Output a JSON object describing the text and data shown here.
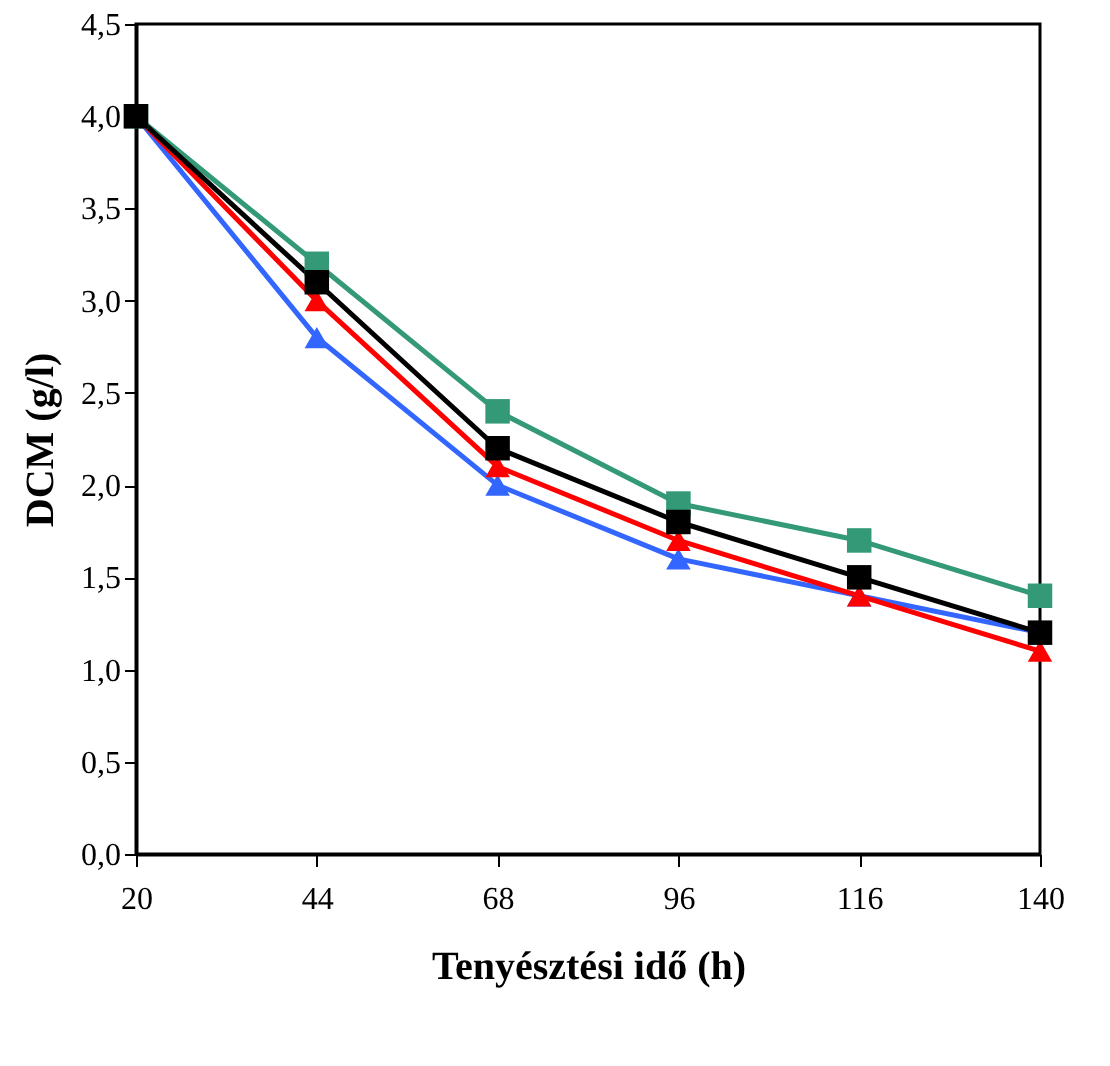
{
  "chart_data": {
    "type": "line",
    "xlabel": "Tenyésztési idő (h)",
    "ylabel": "DCM (g/l)",
    "categories": [
      "20",
      "44",
      "68",
      "96",
      "116",
      "140"
    ],
    "series": [
      {
        "color": "#339977",
        "marker": "square",
        "values": [
          4.0,
          3.2,
          2.4,
          1.9,
          1.7,
          1.4
        ]
      },
      {
        "color": "#3366ff",
        "marker": "triangle",
        "values": [
          4.0,
          2.8,
          2.0,
          1.6,
          1.4,
          1.2
        ]
      },
      {
        "color": "#ff0000",
        "marker": "triangle",
        "values": [
          4.0,
          3.0,
          2.1,
          1.7,
          1.4,
          1.1
        ]
      },
      {
        "color": "#000000",
        "marker": "square",
        "values": [
          4.0,
          3.1,
          2.2,
          1.8,
          1.5,
          1.2
        ]
      }
    ],
    "ylim": [
      0,
      4.5
    ],
    "yticks": [
      {
        "value": 0,
        "label": "0,0"
      },
      {
        "value": 0.5,
        "label": "0,5"
      },
      {
        "value": 1,
        "label": "1,0"
      },
      {
        "value": 1.5,
        "label": "1,5"
      },
      {
        "value": 2,
        "label": "2,0"
      },
      {
        "value": 2.5,
        "label": "2,5"
      },
      {
        "value": 3,
        "label": "3,0"
      },
      {
        "value": 3.5,
        "label": "3,5"
      },
      {
        "value": 4,
        "label": "4,0"
      },
      {
        "value": 4.5,
        "label": "4,5"
      }
    ],
    "grid": false
  }
}
